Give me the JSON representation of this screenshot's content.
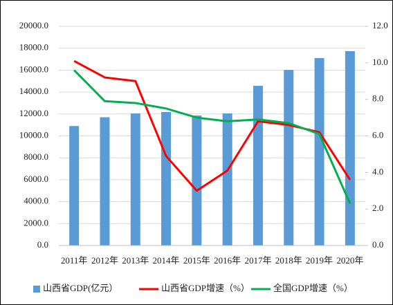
{
  "chart_data": {
    "type": "bar",
    "categories": [
      "2011年",
      "2012年",
      "2013年",
      "2014年",
      "2015年",
      "2016年",
      "2017年",
      "2018年",
      "2019年",
      "2020年"
    ],
    "series": [
      {
        "name": "山西省GDP(亿元）",
        "type": "bar",
        "color": "#5b9bd5",
        "values": [
          10900,
          11700,
          12050,
          12180,
          11860,
          12050,
          14570,
          16020,
          17100,
          17730
        ]
      },
      {
        "name": "山西省GDP增速（%）",
        "type": "line",
        "axis": "y2",
        "color": "#ff0000",
        "values": [
          10.1,
          9.2,
          9.0,
          4.9,
          3.0,
          4.1,
          6.8,
          6.6,
          6.2,
          3.6
        ]
      },
      {
        "name": "全国GDP增速（%）",
        "type": "line",
        "axis": "y2",
        "color": "#00b050",
        "values": [
          9.6,
          7.9,
          7.8,
          7.5,
          7.0,
          6.8,
          6.9,
          6.7,
          6.1,
          2.3
        ]
      }
    ],
    "ylim": [
      0,
      20000
    ],
    "yticks": [
      {
        "value": 0,
        "label": "0.0"
      },
      {
        "value": 2000,
        "label": "2000.0"
      },
      {
        "value": 4000,
        "label": "4000.0"
      },
      {
        "value": 6000,
        "label": "6000.0"
      },
      {
        "value": 8000,
        "label": "8000.0"
      },
      {
        "value": 10000,
        "label": "10000.0"
      },
      {
        "value": 12000,
        "label": "12000.0"
      },
      {
        "value": 14000,
        "label": "14000.0"
      },
      {
        "value": 16000,
        "label": "16000.0"
      },
      {
        "value": 18000,
        "label": "18000.0"
      },
      {
        "value": 20000,
        "label": "20000.0"
      }
    ],
    "y2lim": [
      0,
      12
    ],
    "y2ticks": [
      {
        "value": 0,
        "label": "0.0"
      },
      {
        "value": 2,
        "label": "2.0"
      },
      {
        "value": 4,
        "label": "4.0"
      },
      {
        "value": 6,
        "label": "6.0"
      },
      {
        "value": 8,
        "label": "8.0"
      },
      {
        "value": 10,
        "label": "10.0"
      },
      {
        "value": 12,
        "label": "12.0"
      }
    ],
    "grid": true,
    "legend": "bottom"
  }
}
